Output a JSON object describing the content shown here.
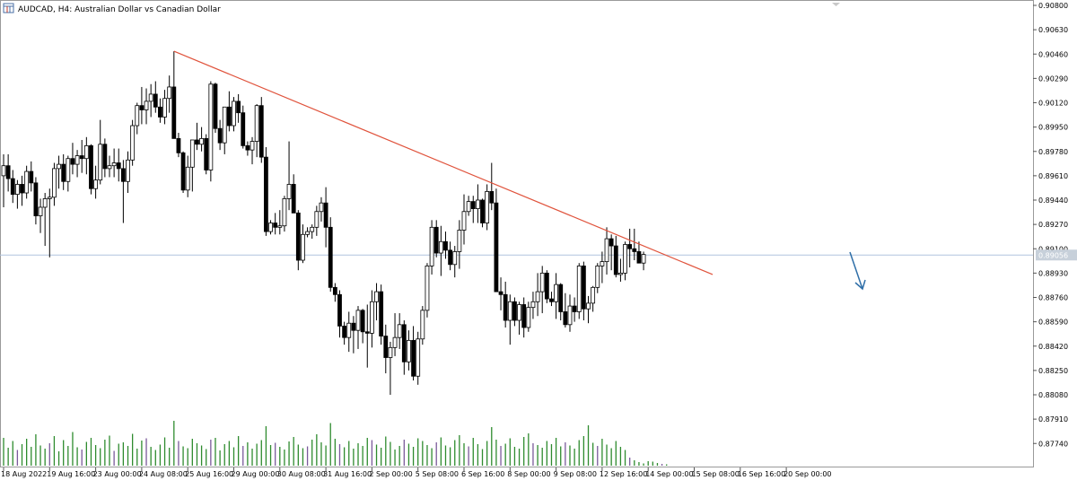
{
  "header": {
    "symbol_icon": "chart-window-icon",
    "title": "AUDCAD, H4:  Australian Dollar vs Canadian Dollar"
  },
  "price_marker": {
    "label": "0.89056",
    "value": 0.89056
  },
  "chart_data": {
    "type": "candlestick",
    "title": "AUDCAD, H4:  Australian Dollar vs Canadian Dollar",
    "ylim": [
      0.8787,
      0.909
    ],
    "y_ticks": [
      0.908,
      0.9063,
      0.9046,
      0.9029,
      0.9012,
      0.8995,
      0.8978,
      0.8961,
      0.8944,
      0.8927,
      0.891,
      0.8893,
      0.8876,
      0.8859,
      0.8842,
      0.8825,
      0.8808,
      0.8791,
      0.8774
    ],
    "y_tick_labels": [
      "0.90800",
      "0.90630",
      "0.90460",
      "0.90290",
      "0.90120",
      "0.89950",
      "0.89780",
      "0.89610",
      "0.89440",
      "0.89270",
      "0.89100",
      "0.88930",
      "0.88760",
      "0.88590",
      "0.88420",
      "0.88250",
      "0.88080",
      "0.87910",
      "0.87740"
    ],
    "x_tick_labels": [
      "18 Aug 2022",
      "19 Aug 16:00",
      "23 Aug 00:00",
      "24 Aug 08:00",
      "25 Aug 16:00",
      "29 Aug 00:00",
      "30 Aug 08:00",
      "31 Aug 16:00",
      "2 Sep 00:00",
      "5 Sep 08:00",
      "6 Sep 16:00",
      "8 Sep 00:00",
      "9 Sep 08:00",
      "12 Sep 16:00",
      "14 Sep 00:00",
      "15 Sep 08:00",
      "16 Sep 16:00",
      "20 Sep 00:00"
    ],
    "x_tick_bar_index": [
      0,
      10,
      20,
      30,
      40,
      50,
      60,
      70,
      80,
      90,
      100,
      110,
      120,
      130,
      140,
      150,
      160,
      170
    ],
    "current_price": 0.89056,
    "bullish_color": "#ffffff",
    "bearish_color": "#000000",
    "volume_color": "#2e8b2e",
    "candles_ohlc": [
      [
        0.8961,
        0.8976,
        0.8939,
        0.8968
      ],
      [
        0.8968,
        0.8976,
        0.895,
        0.8959
      ],
      [
        0.8959,
        0.8965,
        0.8942,
        0.8948
      ],
      [
        0.8948,
        0.8958,
        0.8938,
        0.8955
      ],
      [
        0.8955,
        0.8961,
        0.894,
        0.8949
      ],
      [
        0.8949,
        0.8968,
        0.8945,
        0.8964
      ],
      [
        0.8964,
        0.8971,
        0.895,
        0.8956
      ],
      [
        0.8956,
        0.896,
        0.8927,
        0.8933
      ],
      [
        0.8933,
        0.8945,
        0.8921,
        0.8939
      ],
      [
        0.8939,
        0.8949,
        0.8912,
        0.8945
      ],
      [
        0.8945,
        0.8952,
        0.8904,
        0.8946
      ],
      [
        0.8946,
        0.897,
        0.894,
        0.8966
      ],
      [
        0.8966,
        0.8975,
        0.8952,
        0.8969
      ],
      [
        0.8969,
        0.8976,
        0.8951,
        0.8957
      ],
      [
        0.8957,
        0.8975,
        0.895,
        0.8973
      ],
      [
        0.8973,
        0.8984,
        0.8962,
        0.8969
      ],
      [
        0.8969,
        0.8979,
        0.896,
        0.8975
      ],
      [
        0.8975,
        0.8986,
        0.8963,
        0.8973
      ],
      [
        0.8973,
        0.8988,
        0.8962,
        0.8982
      ],
      [
        0.8982,
        0.8983,
        0.8948,
        0.8952
      ],
      [
        0.8952,
        0.8968,
        0.8945,
        0.8958
      ],
      [
        0.8958,
        0.9,
        0.8955,
        0.8983
      ],
      [
        0.8983,
        0.8987,
        0.896,
        0.8966
      ],
      [
        0.8966,
        0.8975,
        0.896,
        0.8968
      ],
      [
        0.8968,
        0.898,
        0.896,
        0.897
      ],
      [
        0.897,
        0.898,
        0.8957,
        0.8966
      ],
      [
        0.8966,
        0.8972,
        0.8928,
        0.8957
      ],
      [
        0.8957,
        0.8978,
        0.8949,
        0.8972
      ],
      [
        0.8972,
        0.9,
        0.8968,
        0.8996
      ],
      [
        0.8996,
        0.9012,
        0.899,
        0.901
      ],
      [
        0.901,
        0.9023,
        0.8997,
        0.9007
      ],
      [
        0.9007,
        0.9022,
        0.8997,
        0.9013
      ],
      [
        0.9013,
        0.9025,
        0.9002,
        0.9018
      ],
      [
        0.9018,
        0.9027,
        0.9005,
        0.9009
      ],
      [
        0.9009,
        0.9015,
        0.8998,
        0.9002
      ],
      [
        0.9002,
        0.9021,
        0.8997,
        0.9015
      ],
      [
        0.9015,
        0.9031,
        0.9005,
        0.9023
      ],
      [
        0.9023,
        0.9048,
        0.8992,
        0.8987
      ],
      [
        0.8987,
        0.8991,
        0.8974,
        0.8977
      ],
      [
        0.8977,
        0.8978,
        0.8949,
        0.8951
      ],
      [
        0.8951,
        0.8975,
        0.8946,
        0.8967
      ],
      [
        0.8967,
        0.8984,
        0.895,
        0.8986
      ],
      [
        0.8986,
        0.8998,
        0.8979,
        0.8983
      ],
      [
        0.8983,
        0.8995,
        0.8978,
        0.8987
      ],
      [
        0.8987,
        0.899,
        0.8962,
        0.8965
      ],
      [
        0.8965,
        0.9027,
        0.8957,
        0.9025
      ],
      [
        0.9025,
        0.9026,
        0.8991,
        0.8994
      ],
      [
        0.8994,
        0.9,
        0.8979,
        0.8984
      ],
      [
        0.8984,
        0.9009,
        0.8976,
        0.9009
      ],
      [
        0.9009,
        0.902,
        0.8992,
        0.8996
      ],
      [
        0.8996,
        0.9016,
        0.8992,
        0.9013
      ],
      [
        0.9013,
        0.9018,
        0.8998,
        0.9005
      ],
      [
        0.9005,
        0.901,
        0.898,
        0.8982
      ],
      [
        0.8982,
        0.8985,
        0.8975,
        0.8979
      ],
      [
        0.8979,
        0.8988,
        0.8969,
        0.8985
      ],
      [
        0.8985,
        0.9011,
        0.8974,
        0.901
      ],
      [
        0.901,
        0.9016,
        0.897,
        0.8974
      ],
      [
        0.8974,
        0.8981,
        0.8919,
        0.8922
      ],
      [
        0.8922,
        0.893,
        0.892,
        0.8928
      ],
      [
        0.8928,
        0.8935,
        0.892,
        0.8925
      ],
      [
        0.8925,
        0.8937,
        0.892,
        0.8926
      ],
      [
        0.8926,
        0.8947,
        0.8922,
        0.8945
      ],
      [
        0.8945,
        0.8985,
        0.8937,
        0.8955
      ],
      [
        0.8955,
        0.8962,
        0.8935,
        0.8935
      ],
      [
        0.8935,
        0.8937,
        0.8895,
        0.8902
      ],
      [
        0.8902,
        0.8927,
        0.89,
        0.892
      ],
      [
        0.892,
        0.8925,
        0.8918,
        0.8922
      ],
      [
        0.8922,
        0.8927,
        0.8917,
        0.8925
      ],
      [
        0.8925,
        0.894,
        0.8919,
        0.8936
      ],
      [
        0.8936,
        0.8946,
        0.8929,
        0.8942
      ],
      [
        0.8942,
        0.8953,
        0.8911,
        0.8925
      ],
      [
        0.8925,
        0.8932,
        0.888,
        0.8883
      ],
      [
        0.8883,
        0.8886,
        0.8873,
        0.8878
      ],
      [
        0.8878,
        0.8881,
        0.8848,
        0.8856
      ],
      [
        0.8856,
        0.8859,
        0.8843,
        0.8848
      ],
      [
        0.8848,
        0.8866,
        0.8838,
        0.8858
      ],
      [
        0.8858,
        0.8863,
        0.8837,
        0.8853
      ],
      [
        0.8853,
        0.887,
        0.884,
        0.8867
      ],
      [
        0.8867,
        0.8868,
        0.8844,
        0.8852
      ],
      [
        0.8852,
        0.8871,
        0.8827,
        0.8851
      ],
      [
        0.8851,
        0.8881,
        0.8841,
        0.8873
      ],
      [
        0.8873,
        0.8886,
        0.886,
        0.888
      ],
      [
        0.888,
        0.8885,
        0.8843,
        0.8849
      ],
      [
        0.8849,
        0.8857,
        0.8823,
        0.8834
      ],
      [
        0.8834,
        0.8845,
        0.8808,
        0.8841
      ],
      [
        0.8841,
        0.8865,
        0.8835,
        0.8848
      ],
      [
        0.8848,
        0.8865,
        0.884,
        0.8857
      ],
      [
        0.8857,
        0.886,
        0.8822,
        0.8831
      ],
      [
        0.8831,
        0.8853,
        0.8825,
        0.8846
      ],
      [
        0.8846,
        0.8856,
        0.8818,
        0.8821
      ],
      [
        0.8821,
        0.8852,
        0.8815,
        0.8847
      ],
      [
        0.8847,
        0.887,
        0.8843,
        0.8867
      ],
      [
        0.8867,
        0.89,
        0.8862,
        0.8898
      ],
      [
        0.8898,
        0.893,
        0.8892,
        0.8925
      ],
      [
        0.8925,
        0.893,
        0.8904,
        0.8907
      ],
      [
        0.8907,
        0.8926,
        0.8891,
        0.8915
      ],
      [
        0.8915,
        0.8922,
        0.8903,
        0.8909
      ],
      [
        0.8909,
        0.8915,
        0.8895,
        0.8899
      ],
      [
        0.8899,
        0.8912,
        0.889,
        0.8908
      ],
      [
        0.8908,
        0.893,
        0.8896,
        0.8923
      ],
      [
        0.8923,
        0.8948,
        0.8913,
        0.8936
      ],
      [
        0.8936,
        0.8947,
        0.8933,
        0.8943
      ],
      [
        0.8943,
        0.8947,
        0.8928,
        0.8938
      ],
      [
        0.8938,
        0.8955,
        0.8928,
        0.8944
      ],
      [
        0.8944,
        0.8945,
        0.8925,
        0.8928
      ],
      [
        0.8928,
        0.8955,
        0.8923,
        0.895
      ],
      [
        0.895,
        0.897,
        0.8937,
        0.8942
      ],
      [
        0.8942,
        0.8952,
        0.8885,
        0.888
      ],
      [
        0.888,
        0.889,
        0.8867,
        0.8878
      ],
      [
        0.8878,
        0.8887,
        0.8855,
        0.886
      ],
      [
        0.886,
        0.8878,
        0.8843,
        0.8873
      ],
      [
        0.8873,
        0.8876,
        0.8856,
        0.886
      ],
      [
        0.886,
        0.8873,
        0.885,
        0.8871
      ],
      [
        0.8871,
        0.8876,
        0.8848,
        0.8855
      ],
      [
        0.8855,
        0.8873,
        0.8852,
        0.8869
      ],
      [
        0.8869,
        0.888,
        0.8861,
        0.8873
      ],
      [
        0.8873,
        0.8893,
        0.8863,
        0.888
      ],
      [
        0.888,
        0.8898,
        0.8865,
        0.8893
      ],
      [
        0.8893,
        0.8895,
        0.8872,
        0.8875
      ],
      [
        0.8875,
        0.888,
        0.887,
        0.8873
      ],
      [
        0.8873,
        0.8893,
        0.8861,
        0.8885
      ],
      [
        0.8885,
        0.8886,
        0.886,
        0.8866
      ],
      [
        0.8866,
        0.8879,
        0.8855,
        0.8857
      ],
      [
        0.8857,
        0.8878,
        0.8852,
        0.887
      ],
      [
        0.887,
        0.8876,
        0.8859,
        0.8866
      ],
      [
        0.8866,
        0.89,
        0.8861,
        0.8898
      ],
      [
        0.8898,
        0.8901,
        0.886,
        0.8868
      ],
      [
        0.8868,
        0.8877,
        0.8858,
        0.8872
      ],
      [
        0.8872,
        0.8884,
        0.8866,
        0.8883
      ],
      [
        0.8883,
        0.89,
        0.8879,
        0.8898
      ],
      [
        0.8898,
        0.8908,
        0.8886,
        0.8901
      ],
      [
        0.8901,
        0.8925,
        0.8892,
        0.8917
      ],
      [
        0.8917,
        0.892,
        0.8895,
        0.8912
      ],
      [
        0.8912,
        0.8919,
        0.889,
        0.8892
      ],
      [
        0.8892,
        0.8903,
        0.8887,
        0.8893
      ],
      [
        0.8893,
        0.8915,
        0.8888,
        0.8913
      ],
      [
        0.8913,
        0.8924,
        0.8897,
        0.891
      ],
      [
        0.891,
        0.8924,
        0.8902,
        0.8908
      ],
      [
        0.8908,
        0.8915,
        0.89,
        0.89
      ],
      [
        0.89,
        0.8908,
        0.8895,
        0.8906
      ]
    ],
    "volumes": [
      0.62,
      0.4,
      0.55,
      0.35,
      0.48,
      0.6,
      0.42,
      0.7,
      0.45,
      0.38,
      0.5,
      0.66,
      0.32,
      0.57,
      0.44,
      0.75,
      0.41,
      0.36,
      0.53,
      0.62,
      0.46,
      0.39,
      0.58,
      0.67,
      0.33,
      0.49,
      0.52,
      0.44,
      0.71,
      0.38,
      0.56,
      0.61,
      0.42,
      0.35,
      0.47,
      0.63,
      0.4,
      1.0,
      0.55,
      0.43,
      0.39,
      0.6,
      0.5,
      0.45,
      0.37,
      0.58,
      0.62,
      0.34,
      0.48,
      0.55,
      0.41,
      0.66,
      0.44,
      0.52,
      0.38,
      0.49,
      0.57,
      0.88,
      0.46,
      0.51,
      0.42,
      0.36,
      0.54,
      0.64,
      0.47,
      0.39,
      0.43,
      0.58,
      0.7,
      0.52,
      0.45,
      0.95,
      0.6,
      0.48,
      0.41,
      0.55,
      0.38,
      0.5,
      0.44,
      0.62,
      0.57,
      0.47,
      0.4,
      0.65,
      0.53,
      0.36,
      0.44,
      0.58,
      0.49,
      0.42,
      0.61,
      0.55,
      0.46,
      0.39,
      0.52,
      0.63,
      0.45,
      0.41,
      0.57,
      0.68,
      0.5,
      0.43,
      0.62,
      0.48,
      0.37,
      0.55,
      0.86,
      0.58,
      0.44,
      0.49,
      0.61,
      0.42,
      0.38,
      0.64,
      0.72,
      0.5,
      0.46,
      0.4,
      0.55,
      0.48,
      0.62,
      0.43,
      0.52,
      0.45,
      0.38,
      0.57,
      0.66,
      0.9,
      0.51,
      0.44,
      0.6,
      0.47,
      0.39,
      0.55,
      0.42,
      0.35,
      0.18,
      0.12,
      0.08,
      0.05,
      0.1,
      0.09,
      0.06,
      0.04,
      0.03
    ],
    "trendline": {
      "color": "#e0533c",
      "start": {
        "bar": 37,
        "price": 0.9048
      },
      "end": {
        "bar": 154,
        "price": 0.8892
      }
    },
    "arrow": {
      "color": "#2f6fa8",
      "direction": "down-right"
    },
    "grid": false
  }
}
